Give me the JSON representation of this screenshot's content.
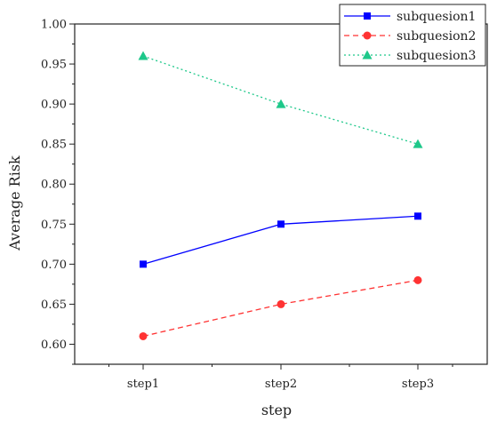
{
  "chart_data": {
    "type": "line",
    "title": "",
    "xlabel": "step",
    "ylabel": "Average Risk",
    "categories": [
      "step1",
      "step2",
      "step3"
    ],
    "ylim": [
      0.575,
      1.0
    ],
    "yticks": [
      "0.60",
      "0.65",
      "0.70",
      "0.75",
      "0.80",
      "0.85",
      "0.90",
      "0.95",
      "1.00"
    ],
    "grid": false,
    "legend_position": "top-right",
    "series": [
      {
        "name": "subquesion1",
        "values": [
          0.7,
          0.75,
          0.76
        ],
        "color": "#0000ff",
        "line_style": "solid",
        "marker": "square"
      },
      {
        "name": "subquesion2",
        "values": [
          0.61,
          0.65,
          0.68
        ],
        "color": "#ff3333",
        "line_style": "dashed",
        "marker": "circle"
      },
      {
        "name": "subquesion3",
        "values": [
          0.96,
          0.9,
          0.85
        ],
        "color": "#1ec88a",
        "line_style": "dotted",
        "marker": "triangle"
      }
    ]
  }
}
